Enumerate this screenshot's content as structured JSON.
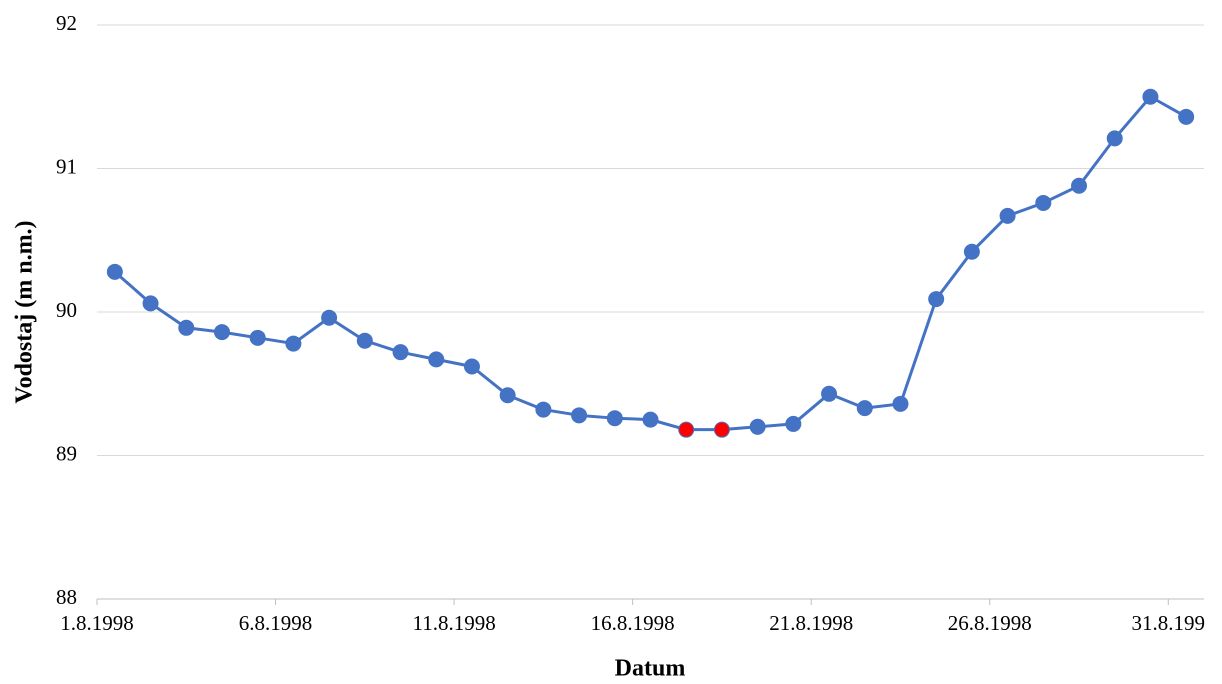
{
  "chart_data": {
    "type": "line",
    "xlabel": "Datum",
    "ylabel": "Vodostaj (m n.m.)",
    "categories": [
      "1.8.1998",
      null,
      null,
      null,
      null,
      "6.8.1998",
      null,
      null,
      null,
      null,
      "11.8.1998",
      null,
      null,
      null,
      null,
      "16.8.1998",
      null,
      null,
      null,
      null,
      "21.8.1998",
      null,
      null,
      null,
      null,
      "26.8.1998",
      null,
      null,
      null,
      null,
      "31.8.199"
    ],
    "series": [
      {
        "color": "#4472c4",
        "values": [
          90.28,
          90.06,
          89.89,
          89.86,
          89.82,
          89.78,
          89.96,
          89.8,
          89.72,
          89.67,
          89.62,
          89.42,
          89.32,
          89.28,
          89.26,
          89.25,
          89.18,
          89.18,
          89.2,
          89.22,
          89.43,
          89.33,
          89.36,
          90.09,
          90.42,
          90.67,
          90.76,
          90.88,
          91.21,
          91.5,
          91.36
        ],
        "marker_colors": [
          "#4472c4",
          "#4472c4",
          "#4472c4",
          "#4472c4",
          "#4472c4",
          "#4472c4",
          "#4472c4",
          "#4472c4",
          "#4472c4",
          "#4472c4",
          "#4472c4",
          "#4472c4",
          "#4472c4",
          "#4472c4",
          "#4472c4",
          "#4472c4",
          "#ff0000",
          "#ff0000",
          "#4472c4",
          "#4472c4",
          "#4472c4",
          "#4472c4",
          "#4472c4",
          "#4472c4",
          "#4472c4",
          "#4472c4",
          "#4472c4",
          "#4472c4",
          "#4472c4",
          "#4472c4",
          "#4472c4"
        ]
      }
    ],
    "ylim": [
      88,
      92
    ],
    "yticks": [
      88,
      89,
      90,
      91,
      92
    ],
    "grid": true
  }
}
